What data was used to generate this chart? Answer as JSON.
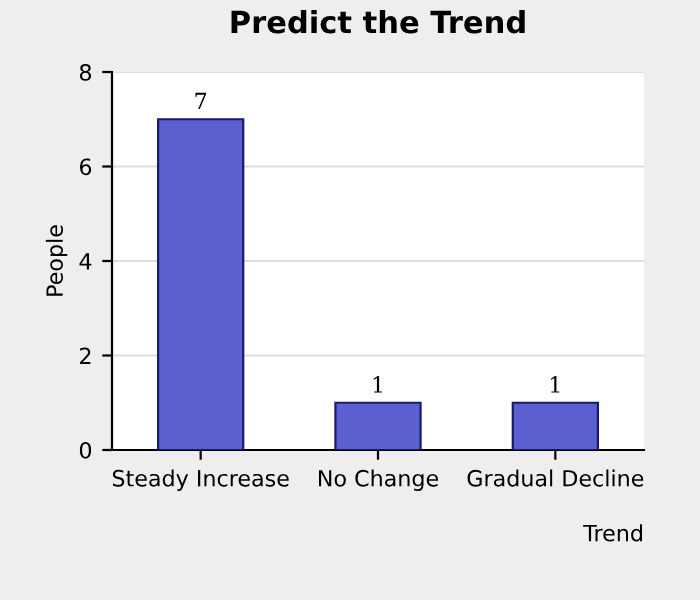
{
  "chart_data": {
    "type": "bar",
    "title": "Predict the Trend",
    "xlabel": "Trend",
    "ylabel": "People",
    "categories": [
      "Steady Increase",
      "No Change",
      "Gradual Decline"
    ],
    "values": [
      7,
      1,
      1
    ],
    "color": "#5b60d0",
    "ylim": [
      0,
      8
    ],
    "yticks": [
      0,
      2,
      4,
      6,
      8
    ],
    "grid": "y",
    "data_labels": true
  }
}
